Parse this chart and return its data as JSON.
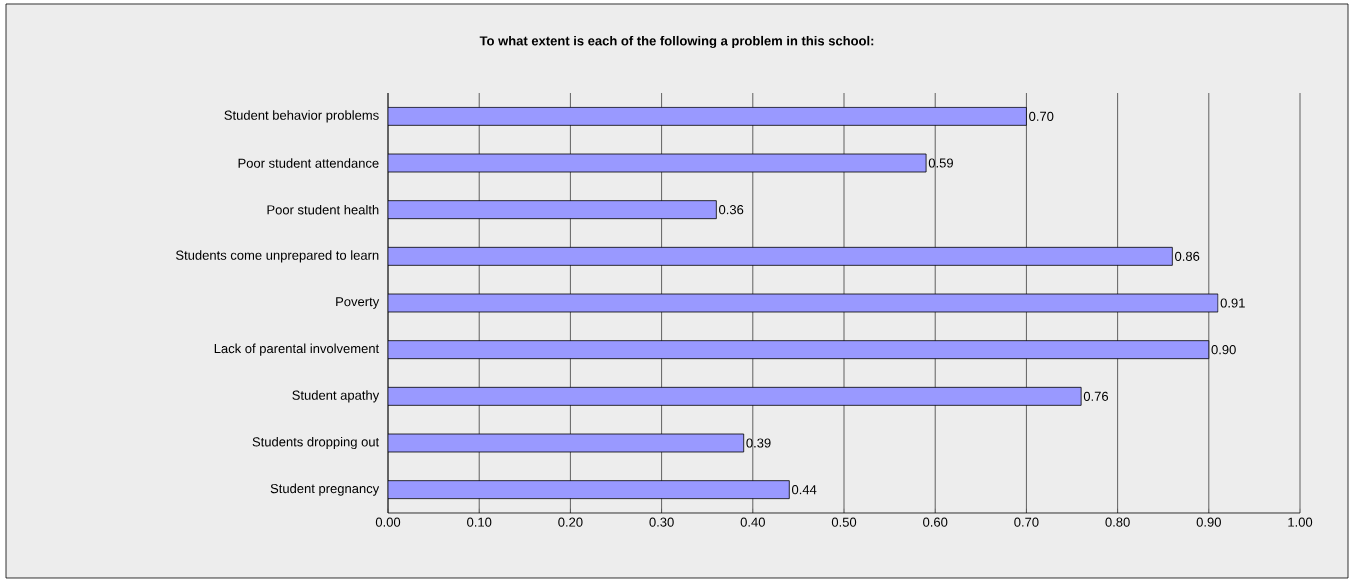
{
  "chart_data": {
    "type": "bar",
    "orientation": "horizontal",
    "title": "To what extent is each of the following a problem in this school:",
    "categories": [
      "Student behavior problems",
      "Poor student attendance",
      "Poor student health",
      "Students come unprepared to learn",
      "Poverty",
      "Lack of parental involvement",
      "Student apathy",
      "Students dropping out",
      "Student pregnancy"
    ],
    "values": [
      0.7,
      0.59,
      0.36,
      0.86,
      0.91,
      0.9,
      0.76,
      0.39,
      0.44
    ],
    "value_labels": [
      "0.70",
      "0.59",
      "0.36",
      "0.86",
      "0.91",
      "0.90",
      "0.76",
      "0.39",
      "0.44"
    ],
    "color": "#9999ff",
    "xlim": [
      0,
      1
    ],
    "xticks": [
      {
        "value": 0,
        "label": "0.00"
      },
      {
        "value": 0.1,
        "label": "0.10"
      },
      {
        "value": 0.2,
        "label": "0.20"
      },
      {
        "value": 0.3,
        "label": "0.30"
      },
      {
        "value": 0.4,
        "label": "0.40"
      },
      {
        "value": 0.5,
        "label": "0.50"
      },
      {
        "value": 0.6,
        "label": "0.60"
      },
      {
        "value": 0.7,
        "label": "0.70"
      },
      {
        "value": 0.8,
        "label": "0.80"
      },
      {
        "value": 0.9,
        "label": "0.90"
      },
      {
        "value": 1,
        "label": "1.00"
      }
    ],
    "grid": "x"
  }
}
